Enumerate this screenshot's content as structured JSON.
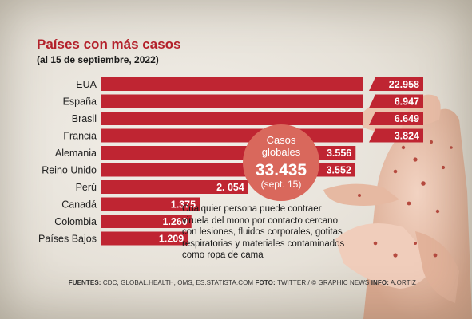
{
  "header": {
    "title": "Países con más casos",
    "subtitle": "(al 15 de septiembre, 2022)"
  },
  "bubble": {
    "line1": "Casos",
    "line2": "globales",
    "total": "33.435",
    "date": "(sept. 15)"
  },
  "note": "Cualquier persona puede contraer viruela del mono por contacto cercano con lesiones, fluidos corporales, gotitas respiratorias y materiales contaminados como ropa de cama",
  "footer": {
    "sources_label": "FUENTES:",
    "sources": "CDC, GLOBAL.HEALTH, OMS, ES.STATISTA.COM",
    "photo_label": "FOTO:",
    "photo": "TWITTER / © GRAPHIC NEWS",
    "info_label": "INFO:",
    "info": "A.ORTIZ"
  },
  "colors": {
    "bar": "#bf2532",
    "bubble": "#d9685c",
    "title": "#b5212b"
  },
  "chart_data": {
    "type": "bar",
    "orientation": "horizontal",
    "title": "Países con más casos",
    "subtitle": "(al 15 de septiembre, 2022)",
    "categories": [
      "EUA",
      "España",
      "Brasil",
      "Francia",
      "Alemania",
      "Reino Unido",
      "Perú",
      "Canadá",
      "Colombia",
      "Países Bajos"
    ],
    "values": [
      22958,
      6947,
      6649,
      3824,
      3556,
      3552,
      2054,
      1375,
      1260,
      1209
    ],
    "value_labels": [
      "22.958",
      "6.947",
      "6.649",
      "3.824",
      "3.556",
      "3.552",
      "2. 054",
      "1.375",
      "1.260",
      "1.209"
    ],
    "axis_break": true,
    "grid": false
  }
}
